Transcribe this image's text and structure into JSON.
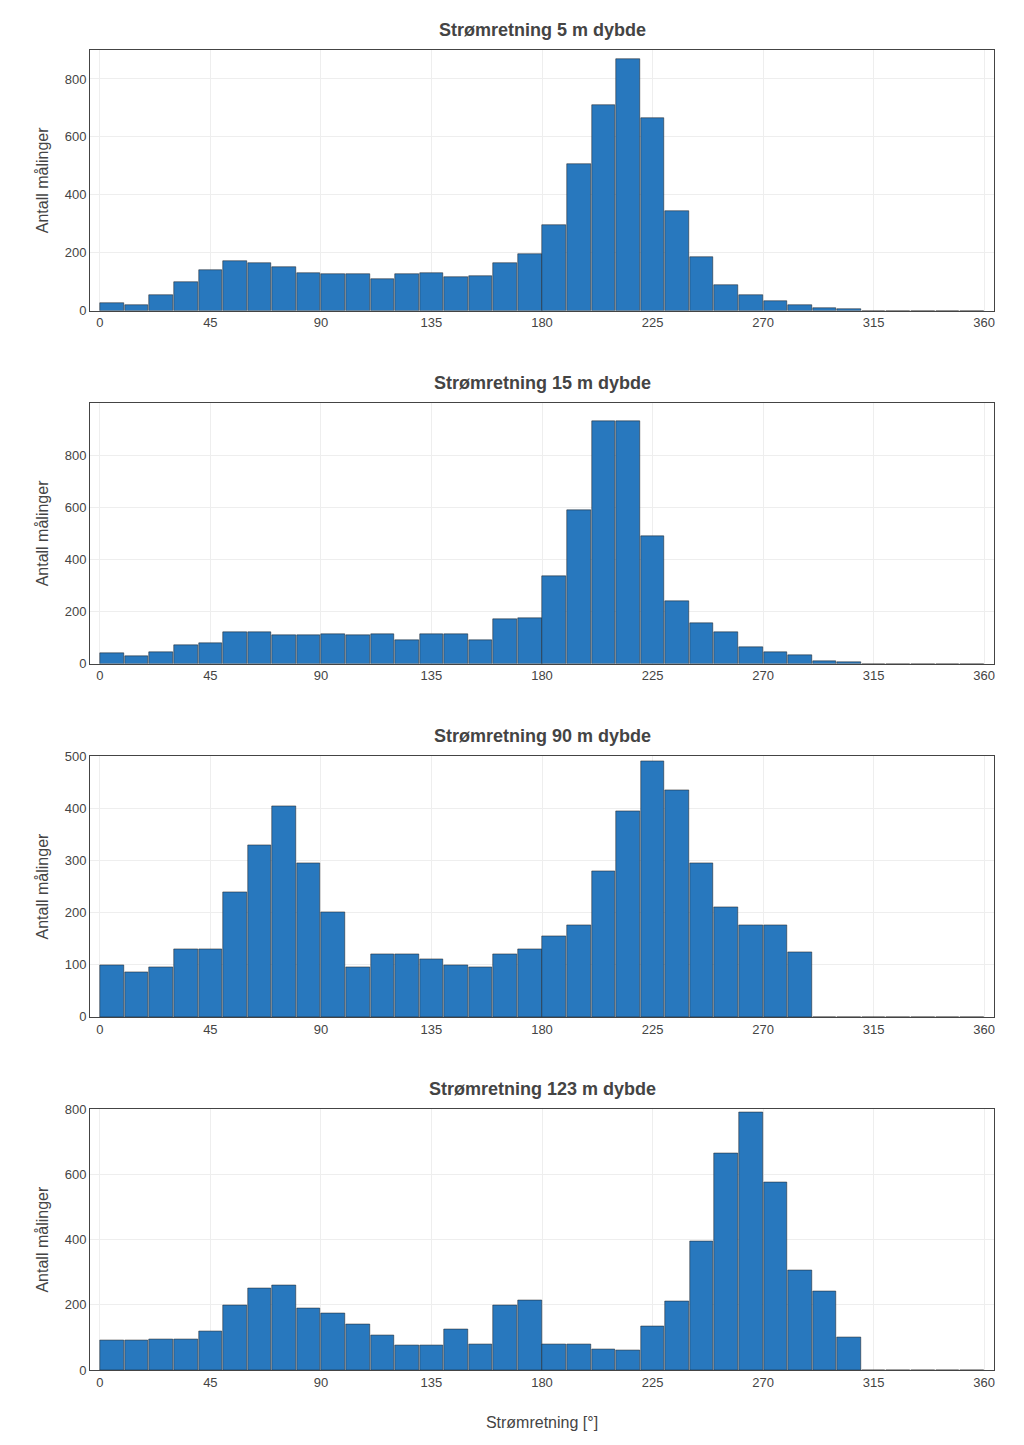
{
  "chart_data": [
    {
      "type": "histogram",
      "title": "Strømretning 5 m dybde",
      "ylabel": "Antall målinger",
      "bins": [
        0,
        10,
        20,
        30,
        40,
        50,
        60,
        70,
        80,
        90,
        100,
        110,
        120,
        130,
        140,
        150,
        160,
        170,
        180,
        190,
        200,
        210,
        220,
        230,
        240,
        250,
        260,
        270,
        280,
        290,
        300,
        310,
        320,
        330,
        340,
        350,
        360
      ],
      "values": [
        25,
        20,
        55,
        100,
        140,
        170,
        165,
        150,
        130,
        125,
        125,
        110,
        125,
        130,
        115,
        120,
        165,
        195,
        295,
        505,
        710,
        870,
        665,
        345,
        185,
        90,
        55,
        35,
        20,
        10,
        5,
        0,
        0,
        0,
        0,
        0
      ],
      "color": "#2878BE",
      "xlim": [
        -4,
        364
      ],
      "xticks": [
        0,
        45,
        90,
        135,
        180,
        225,
        270,
        315,
        360
      ],
      "ylim": [
        0,
        900
      ],
      "yticks": [
        0,
        200,
        400,
        600,
        800
      ],
      "grid": true
    },
    {
      "type": "histogram",
      "title": "Strømretning 15 m dybde",
      "ylabel": "Antall målinger",
      "bins": [
        0,
        10,
        20,
        30,
        40,
        50,
        60,
        70,
        80,
        90,
        100,
        110,
        120,
        130,
        140,
        150,
        160,
        170,
        180,
        190,
        200,
        210,
        220,
        230,
        240,
        250,
        260,
        270,
        280,
        290,
        300,
        310,
        320,
        330,
        340,
        350,
        360
      ],
      "values": [
        40,
        30,
        45,
        70,
        80,
        120,
        120,
        110,
        110,
        115,
        110,
        115,
        90,
        115,
        115,
        90,
        170,
        175,
        335,
        590,
        930,
        930,
        490,
        240,
        155,
        120,
        65,
        45,
        35,
        10,
        5,
        0,
        0,
        0,
        0,
        0
      ],
      "color": "#2878BE",
      "xlim": [
        -4,
        364
      ],
      "xticks": [
        0,
        45,
        90,
        135,
        180,
        225,
        270,
        315,
        360
      ],
      "ylim": [
        0,
        1000
      ],
      "yticks": [
        0,
        200,
        400,
        600,
        800
      ],
      "grid": true
    },
    {
      "type": "histogram",
      "title": "Strømretning 90 m dybde",
      "ylabel": "Antall målinger",
      "bins": [
        0,
        10,
        20,
        30,
        40,
        50,
        60,
        70,
        80,
        90,
        100,
        110,
        120,
        130,
        140,
        150,
        160,
        170,
        180,
        190,
        200,
        210,
        220,
        230,
        240,
        250,
        260,
        270,
        280,
        290,
        300,
        310,
        320,
        330,
        340,
        350,
        360
      ],
      "values": [
        100,
        85,
        95,
        130,
        130,
        240,
        330,
        405,
        295,
        200,
        95,
        120,
        120,
        110,
        100,
        95,
        120,
        130,
        155,
        175,
        280,
        395,
        490,
        435,
        295,
        210,
        175,
        175,
        125,
        0,
        0,
        0,
        0,
        0,
        0,
        0
      ],
      "color": "#2878BE",
      "xlim": [
        -4,
        364
      ],
      "xticks": [
        0,
        45,
        90,
        135,
        180,
        225,
        270,
        315,
        360
      ],
      "ylim": [
        0,
        500
      ],
      "yticks": [
        0,
        100,
        200,
        300,
        400,
        500
      ],
      "grid": true
    },
    {
      "type": "histogram",
      "title": "Strømretning 123 m dybde",
      "ylabel": "Antall målinger",
      "xlabel": "Strømretning [°]",
      "bins": [
        0,
        10,
        20,
        30,
        40,
        50,
        60,
        70,
        80,
        90,
        100,
        110,
        120,
        130,
        140,
        150,
        160,
        170,
        180,
        190,
        200,
        210,
        220,
        230,
        240,
        250,
        260,
        270,
        280,
        290,
        300,
        310,
        320,
        330,
        340,
        350,
        360
      ],
      "values": [
        90,
        90,
        95,
        95,
        120,
        200,
        250,
        260,
        190,
        175,
        140,
        105,
        75,
        75,
        125,
        80,
        200,
        215,
        80,
        80,
        65,
        60,
        135,
        210,
        395,
        665,
        790,
        575,
        305,
        240,
        100,
        0,
        0,
        0,
        0,
        0
      ],
      "color": "#2878BE",
      "xlim": [
        -4,
        364
      ],
      "xticks": [
        0,
        45,
        90,
        135,
        180,
        225,
        270,
        315,
        360
      ],
      "ylim": [
        0,
        800
      ],
      "yticks": [
        0,
        200,
        400,
        600,
        800
      ],
      "grid": true
    }
  ]
}
